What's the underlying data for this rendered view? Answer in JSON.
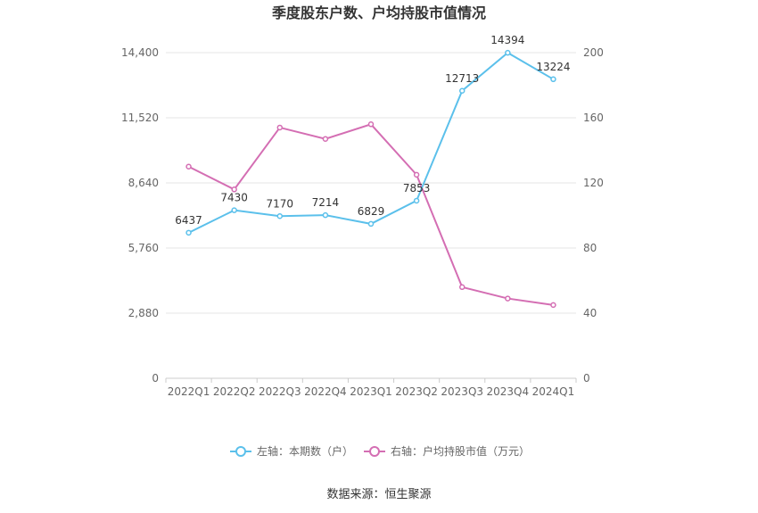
{
  "chart_data": {
    "type": "line",
    "title": "季度股东户数、户均持股市值情况",
    "categories": [
      "2022Q1",
      "2022Q2",
      "2022Q3",
      "2022Q4",
      "2023Q1",
      "2023Q2",
      "2023Q3",
      "2023Q4",
      "2024Q1"
    ],
    "left_axis": {
      "min": 0,
      "max": 14400,
      "ticks": [
        "0",
        "2,880",
        "5,760",
        "8,640",
        "11,520",
        "14,400"
      ]
    },
    "right_axis": {
      "min": 0,
      "max": 200,
      "ticks": [
        "0",
        "40",
        "80",
        "120",
        "160",
        "200"
      ]
    },
    "grid": true,
    "legend_position": "bottom",
    "series": [
      {
        "name": "左轴：本期数（户）",
        "axis": "left",
        "color": "#5bc0eb",
        "values": [
          6437,
          7430,
          7170,
          7214,
          6829,
          7853,
          12713,
          14394,
          13224
        ],
        "labels": [
          "6437",
          "7430",
          "7170",
          "7214",
          "6829",
          "7853",
          "12713",
          "14394",
          "13224"
        ]
      },
      {
        "name": "右轴：户均持股市值（万元）",
        "axis": "right",
        "color": "#d46eb3",
        "values": [
          130,
          116,
          154,
          147,
          156,
          125,
          56,
          49,
          45
        ]
      }
    ]
  },
  "source": "数据来源：恒生聚源"
}
